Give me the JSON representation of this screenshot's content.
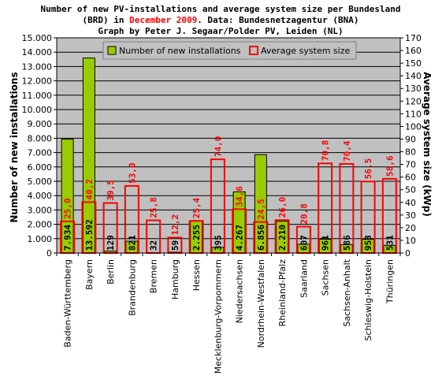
{
  "title": {
    "line1": "Number of new PV-installations and average system size per Bundesland",
    "line2_pre": "(BRD) in ",
    "line2_highlight": "December 2009",
    "line2_post": ". Data: Bundesnetzagentur (BNA)",
    "line3": "Graph by Peter J. Segaar/Polder PV, Leiden (NL)"
  },
  "colors": {
    "plot_background": "#c0c0c0",
    "count_bar": "#99cc00",
    "size_bar_outline": "#ff0000",
    "highlight_text": "#ff0000"
  },
  "legend": {
    "placement": "top",
    "items": [
      "Number of new installations",
      "Average system size"
    ]
  },
  "chart_data": {
    "type": "bar",
    "ylabel": "Number of new installations",
    "y2label": "Average system size (kWp)",
    "ylim": [
      0,
      15000
    ],
    "y2lim": [
      0,
      170
    ],
    "yticks": [
      "0",
      "1.000",
      "2.000",
      "3.000",
      "4.000",
      "5.000",
      "6.000",
      "7.000",
      "8.000",
      "9.000",
      "10.000",
      "11.000",
      "12.000",
      "13.000",
      "14.000",
      "15.000"
    ],
    "y2ticks": [
      "0",
      "10",
      "20",
      "30",
      "40",
      "50",
      "60",
      "70",
      "80",
      "90",
      "100",
      "110",
      "120",
      "130",
      "140",
      "150",
      "160",
      "170"
    ],
    "grid": true,
    "categories": [
      "Baden-Württemberg",
      "Bayern",
      "Berlin",
      "Brandenburg",
      "Bremen",
      "Hamburg",
      "Hessen",
      "Mecklenburg-Vorpommern",
      "Niedersachsen",
      "Nordrhein-Westfalen",
      "Rheinland-Pfalz",
      "Saarland",
      "Sachsen",
      "Sachsen-Anhalt",
      "Schleswig-Holstein",
      "Thüringen"
    ],
    "series": [
      {
        "name": "Number of new installations",
        "axis": "left",
        "values": [
          7934,
          13592,
          129,
          821,
          32,
          59,
          2255,
          395,
          4267,
          6856,
          2210,
          607,
          961,
          586,
          953,
          531
        ],
        "labels": [
          "7.934",
          "13.592",
          "129",
          "821",
          "32",
          "59",
          "2.255",
          "395",
          "4.267",
          "6.856",
          "2.210",
          "607",
          "961",
          "586",
          "953",
          "531"
        ]
      },
      {
        "name": "Average system size",
        "axis": "right",
        "values": [
          25.0,
          40.2,
          39.5,
          53.0,
          25.8,
          12.2,
          25.4,
          74.0,
          34.6,
          24.5,
          26.0,
          20.8,
          70.8,
          70.4,
          56.5,
          58.6
        ],
        "labels": [
          "25,0",
          "40,2",
          "39,5",
          "53,0",
          "25,8",
          "12,2",
          "25,4",
          "74,0",
          "34,6",
          "24,5",
          "26,0",
          "20,8",
          "70,8",
          "70,4",
          "56,5",
          "58,6"
        ]
      }
    ]
  }
}
